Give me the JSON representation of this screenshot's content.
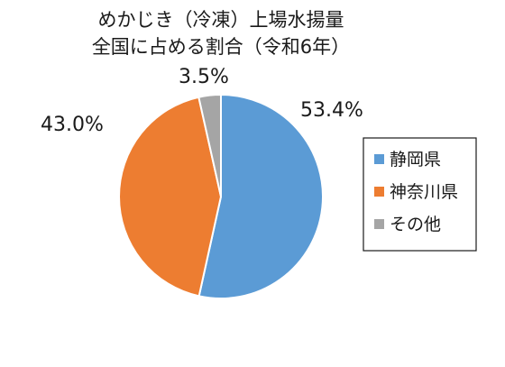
{
  "chart_data": {
    "type": "pie",
    "title_lines": [
      "めかじき（冷凍）上場水揚量",
      "全国に占める割合（令和6年）"
    ],
    "categories": [
      "静岡県",
      "神奈川県",
      "その他"
    ],
    "values": [
      53.4,
      43.0,
      3.5
    ],
    "data_labels": [
      "53.4%",
      "43.0%",
      "3.5%"
    ],
    "colors": [
      "#5b9bd5",
      "#ed7d31",
      "#a5a5a5"
    ],
    "start_angle_deg": 0,
    "direction": "clockwise",
    "legend": {
      "position": "right",
      "entries": [
        "静岡県",
        "神奈川県",
        "その他"
      ]
    }
  }
}
